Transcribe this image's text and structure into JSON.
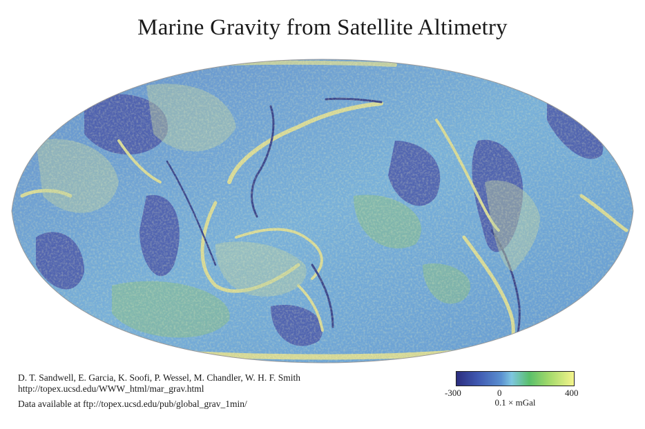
{
  "title": "Marine Gravity from Satellite Altimetry",
  "credits": {
    "authors": "D. T. Sandwell, E. Garcia, K. Soofi, P. Wessel, M. Chandler, W. H. F. Smith",
    "url": "http://topex.ucsd.edu/WWW_html/mar_grav.html",
    "data": "Data available at ftp://topex.ucsd.edu/pub/global_grav_1min/"
  },
  "legend": {
    "min_label": "-300",
    "mid_label": "0",
    "max_label": "400",
    "unit": "0.1 × mGal",
    "colors": [
      "#2b2d7e",
      "#3f58b0",
      "#5a8fd0",
      "#7ec6e0",
      "#59bf6b",
      "#9fd86a",
      "#f4f48c"
    ]
  },
  "map": {
    "ocean_color": "#6fb0de",
    "low_color": "#3d4aa0",
    "high_color": "#eef07e",
    "mid_green": "#a6d57a"
  }
}
